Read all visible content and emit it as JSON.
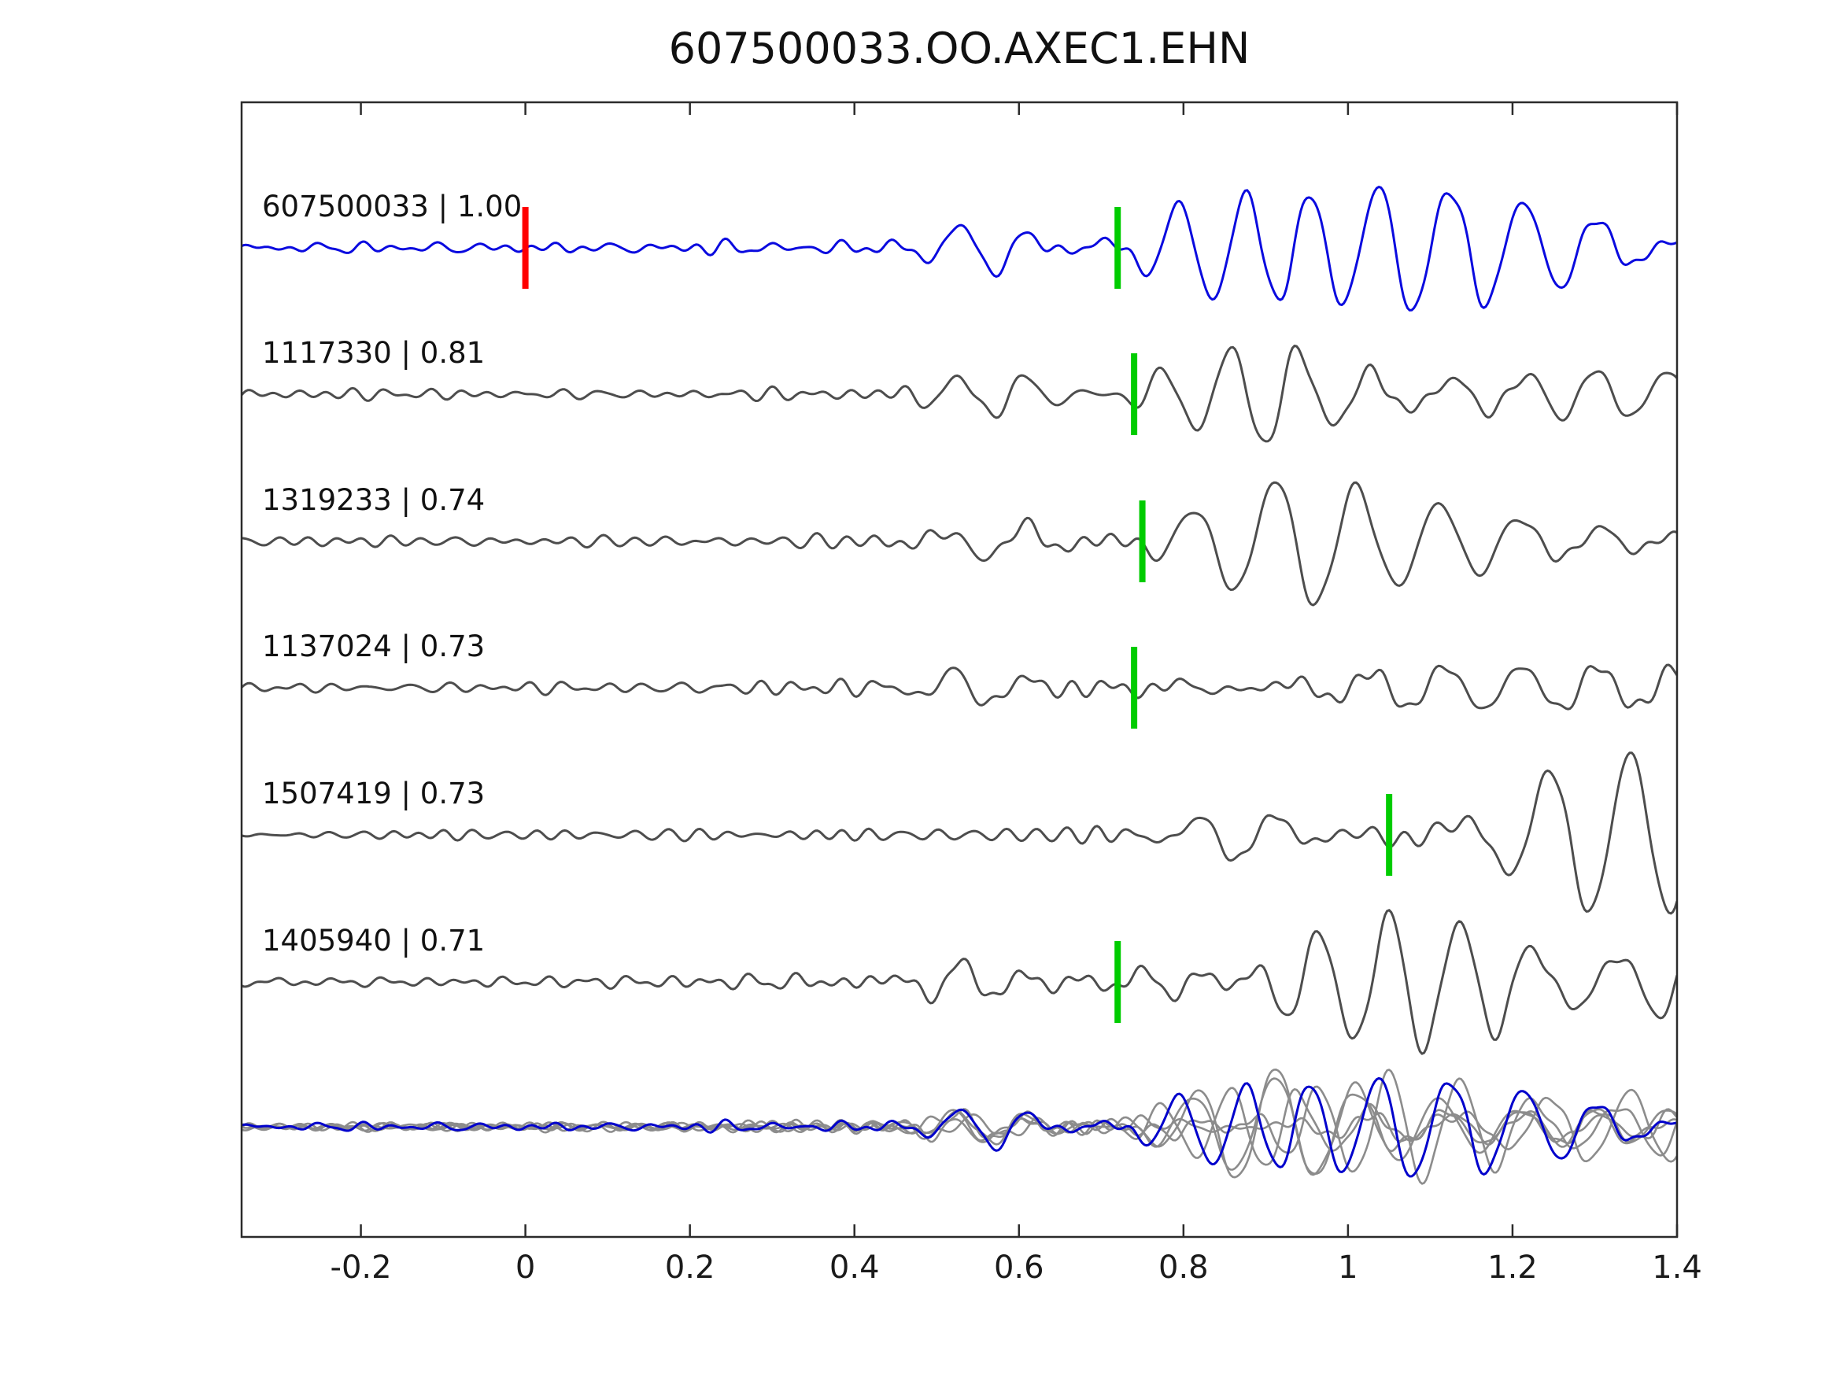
{
  "title": "607500033.OO.AXEC1.EHN",
  "chart_data": {
    "type": "line",
    "title": "607500033.OO.AXEC1.EHN",
    "xlabel": "",
    "ylabel": "",
    "xlim": [
      -0.345,
      1.4
    ],
    "x_ticks": [
      -0.2,
      0,
      0.2,
      0.4,
      0.6,
      0.8,
      1,
      1.2,
      1.4
    ],
    "x_tick_labels": [
      "-0.2",
      "0",
      "0.2",
      "0.4",
      "0.6",
      "0.8",
      "1",
      "1.2",
      "1.4"
    ],
    "grid": false,
    "legend": "none",
    "colors": {
      "reference_trace": "#0a0adf",
      "match_trace": "#4d4d4d",
      "pick_marker": "#00cc00",
      "origin_marker": "#ff0000",
      "overlay_gray": "#8c8c8c",
      "overlay_blue": "#0000cc",
      "axis_box": "#2b2b2b",
      "label_text": "#111111"
    },
    "traces": [
      {
        "label": "607500033 | 1.00",
        "station_id": "607500033",
        "correlation": 1.0,
        "role": "reference",
        "pick_time": 0.72,
        "origin_marker_time": 0.0
      },
      {
        "label": "1117330 | 0.81",
        "station_id": "1117330",
        "correlation": 0.81,
        "role": "match",
        "pick_time": 0.74
      },
      {
        "label": "1319233 | 0.74",
        "station_id": "1319233",
        "correlation": 0.74,
        "role": "match",
        "pick_time": 0.75
      },
      {
        "label": "1137024 | 0.73",
        "station_id": "1137024",
        "correlation": 0.73,
        "role": "match",
        "pick_time": 0.74
      },
      {
        "label": "1507419 | 0.73",
        "station_id": "1507419",
        "correlation": 0.73,
        "role": "match",
        "pick_time": 1.05
      },
      {
        "label": "1405940 | 0.71",
        "station_id": "1405940",
        "correlation": 0.71,
        "role": "match",
        "pick_time": 0.72
      }
    ],
    "overlay": {
      "description": "all traces aligned and superimposed, reference in blue",
      "aligned_pick_time": 0.73
    }
  }
}
